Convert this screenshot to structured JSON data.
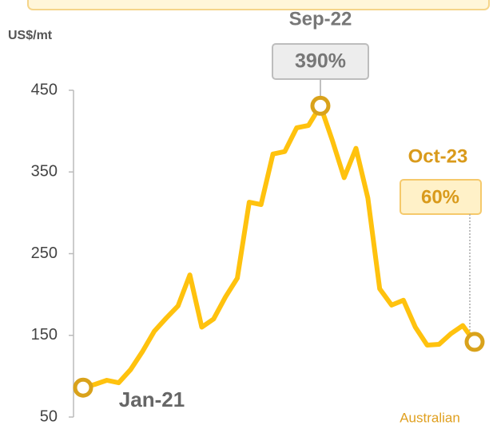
{
  "chart_data": {
    "type": "line",
    "y_label": "US$/mt",
    "categories": [
      "Jan-21",
      null,
      null,
      null,
      null,
      null,
      null,
      null,
      null,
      null,
      null,
      null,
      null,
      null,
      null,
      null,
      null,
      null,
      null,
      null,
      "Sep-22",
      null,
      null,
      null,
      null,
      null,
      null,
      null,
      null,
      null,
      null,
      null,
      null,
      "Oct-23"
    ],
    "series": [
      {
        "name": "Australian",
        "color": "#FFC20E",
        "values": [
          86,
          90,
          95,
          92,
          108,
          130,
          155,
          171,
          186,
          224,
          160,
          170,
          197,
          220,
          313,
          310,
          372,
          375,
          404,
          407,
          431,
          389,
          343,
          379,
          318,
          207,
          187,
          193,
          160,
          138,
          139,
          152,
          162,
          142
        ]
      }
    ],
    "annotations": [
      "390%",
      "60%"
    ],
    "ylim": [
      50,
      450
    ],
    "yticks": [
      50,
      150,
      250,
      350,
      450
    ]
  }
}
